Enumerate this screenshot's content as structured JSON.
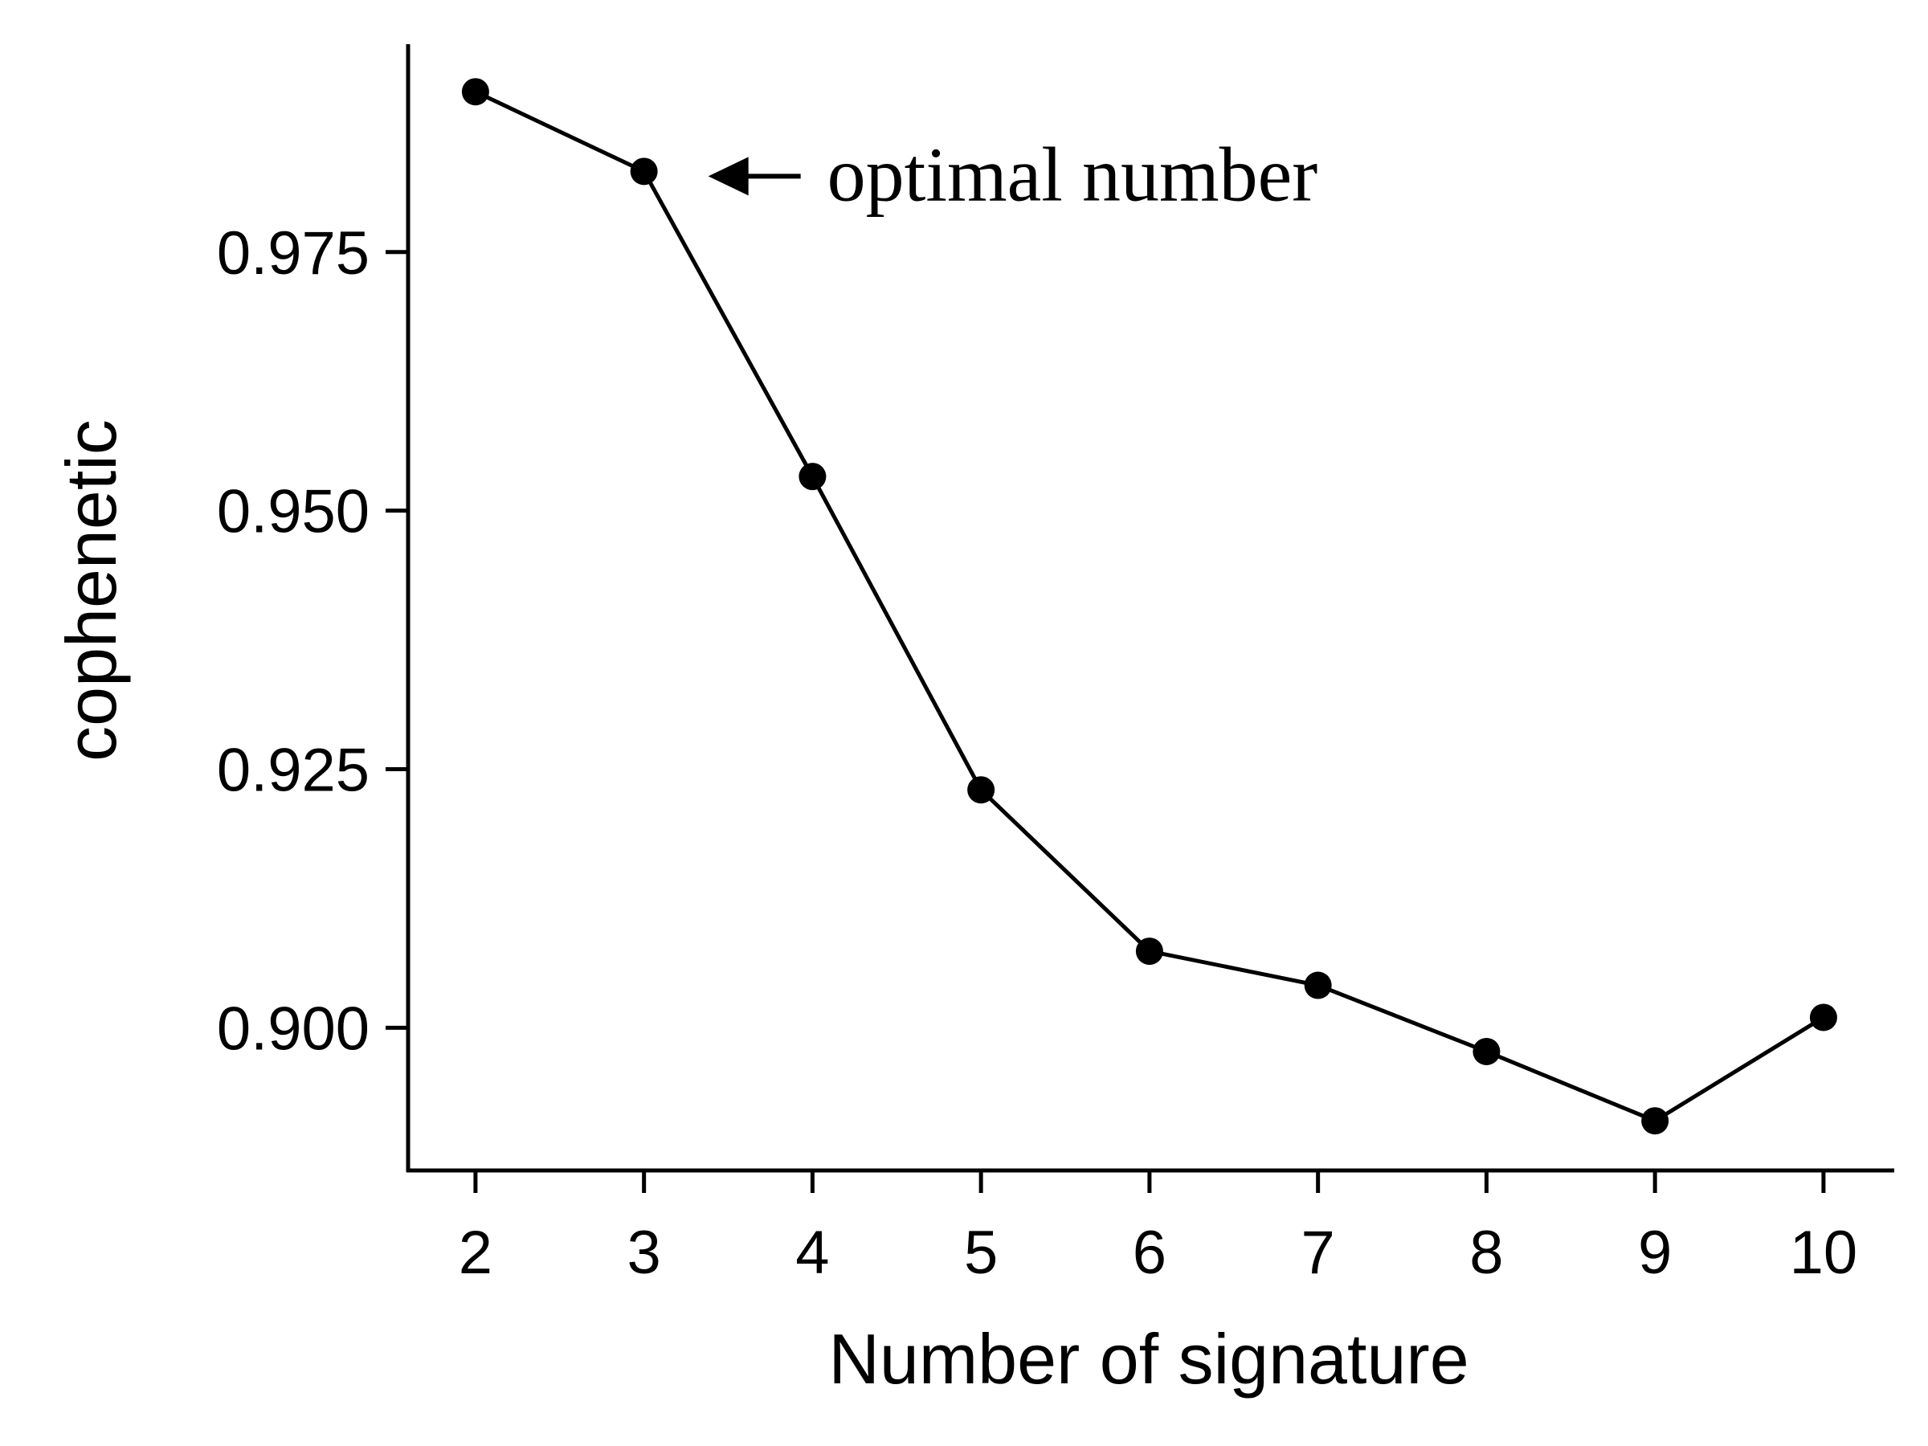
{
  "chart_data": {
    "type": "line",
    "title": "",
    "xlabel": "Number of signature",
    "ylabel": "cophenetic",
    "x": [
      2,
      3,
      4,
      5,
      6,
      7,
      8,
      9,
      10
    ],
    "series": [
      {
        "values": [
          0.9905,
          0.9828,
          0.9533,
          0.923,
          0.9074,
          0.9041,
          0.8977,
          0.891,
          0.901
        ]
      }
    ],
    "xticks": [
      "2",
      "3",
      "4",
      "5",
      "6",
      "7",
      "8",
      "9",
      "10"
    ],
    "yticks": [
      "0.900",
      "0.925",
      "0.950",
      "0.975"
    ],
    "xlim": [
      1.6,
      10.42
    ],
    "ylim": [
      0.8862,
      0.9951
    ],
    "grid": false,
    "legend": "none",
    "annotation": {
      "text": "optimal number",
      "x": 3
    },
    "colors": {
      "line": "#000000",
      "marker": "#000000"
    }
  }
}
